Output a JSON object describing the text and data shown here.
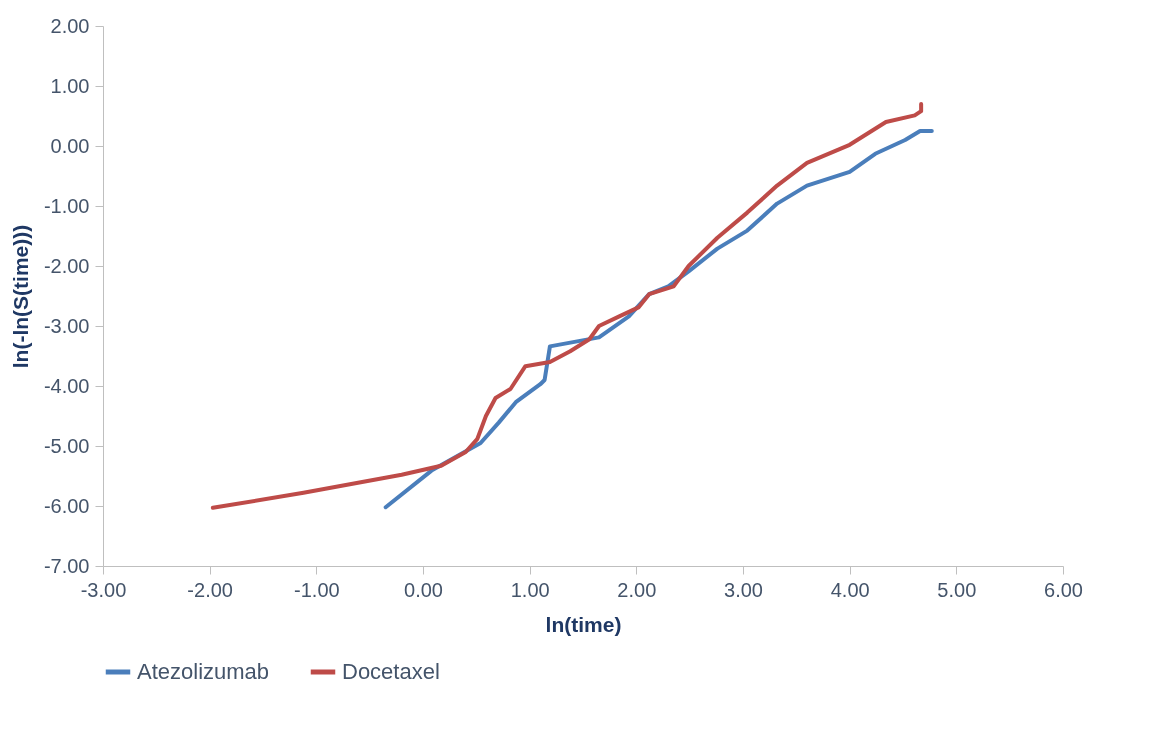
{
  "chart_data": {
    "type": "line",
    "xlabel": "ln(time)",
    "ylabel": "ln(-ln(S(time)))",
    "xlim": [
      -3,
      6
    ],
    "xticks": [
      {
        "value": -3,
        "label": "-3.00"
      },
      {
        "value": -2,
        "label": "-2.00"
      },
      {
        "value": -1,
        "label": "-1.00"
      },
      {
        "value": 0,
        "label": "0.00"
      },
      {
        "value": 1,
        "label": "1.00"
      },
      {
        "value": 2,
        "label": "2.00"
      },
      {
        "value": 3,
        "label": "3.00"
      },
      {
        "value": 4,
        "label": "4.00"
      },
      {
        "value": 5,
        "label": "5.00"
      },
      {
        "value": 6,
        "label": "6.00"
      }
    ],
    "ylim": [
      -7,
      2
    ],
    "yticks": [
      {
        "value": -7,
        "label": "-7.00"
      },
      {
        "value": -6,
        "label": "-6.00"
      },
      {
        "value": -5,
        "label": "-5.00"
      },
      {
        "value": -4,
        "label": "-4.00"
      },
      {
        "value": -3,
        "label": "-3.00"
      },
      {
        "value": -2,
        "label": "-2.00"
      },
      {
        "value": -1,
        "label": "-1.00"
      },
      {
        "value": 0,
        "label": "0.00"
      },
      {
        "value": 1,
        "label": "1.00"
      },
      {
        "value": 2,
        "label": "2.00"
      }
    ],
    "grid": false,
    "legend": "bottom",
    "marker": "none",
    "line_style": "solid",
    "series": [
      {
        "name": "Atezolizumab",
        "color": "#4a7ebb",
        "x": [
          -0.35,
          0.08,
          0.54,
          0.71,
          0.87,
          1.1,
          1.14,
          1.19,
          1.65,
          1.93,
          2.12,
          2.3,
          2.49,
          2.76,
          3.04,
          3.32,
          3.6,
          4.0,
          4.24,
          4.52,
          4.66,
          4.77
        ],
        "values": [
          -6.02,
          -5.41,
          -4.95,
          -4.61,
          -4.27,
          -3.97,
          -3.9,
          -3.34,
          -3.19,
          -2.84,
          -2.47,
          -2.34,
          -2.09,
          -1.71,
          -1.41,
          -0.96,
          -0.66,
          -0.43,
          -0.13,
          0.1,
          0.25,
          0.25
        ]
      },
      {
        "name": "Docetaxel",
        "color": "#be4b48",
        "x": [
          -1.97,
          -1.12,
          -0.2,
          0.17,
          0.4,
          0.51,
          0.59,
          0.68,
          0.82,
          0.96,
          1.19,
          1.38,
          1.56,
          1.65,
          1.84,
          2.02,
          2.12,
          2.35,
          2.49,
          2.76,
          3.04,
          3.32,
          3.6,
          4.0,
          4.34,
          4.61,
          4.67,
          4.67
        ],
        "values": [
          -6.03,
          -5.78,
          -5.48,
          -5.33,
          -5.1,
          -4.88,
          -4.5,
          -4.2,
          -4.05,
          -3.67,
          -3.6,
          -3.42,
          -3.22,
          -3.0,
          -2.84,
          -2.69,
          -2.47,
          -2.34,
          -2.0,
          -1.53,
          -1.11,
          -0.66,
          -0.28,
          0.02,
          0.4,
          0.51,
          0.58,
          0.7
        ]
      }
    ]
  }
}
